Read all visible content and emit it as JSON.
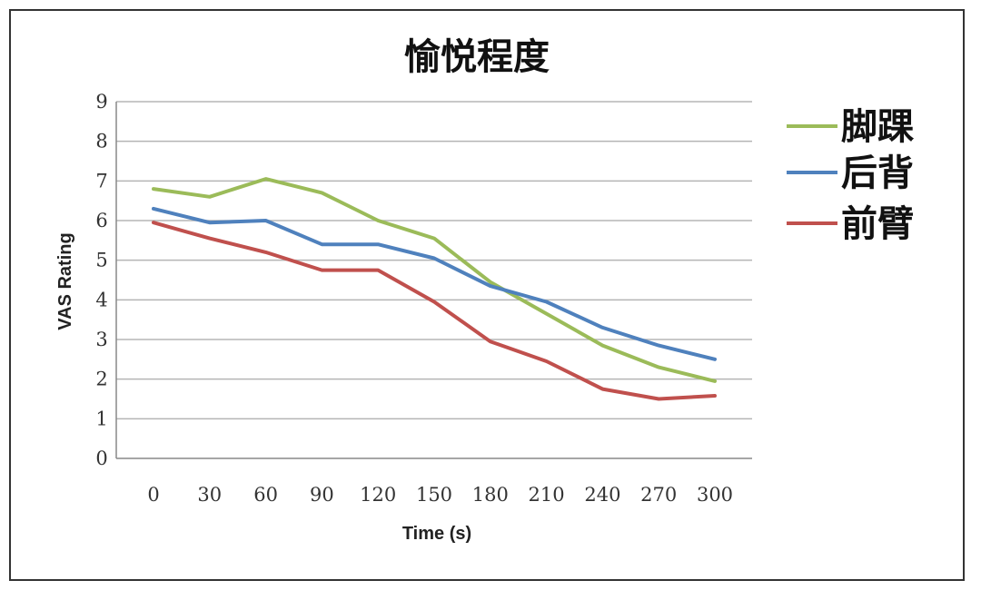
{
  "chart_data": {
    "type": "line",
    "title": "愉悦程度",
    "xlabel": "Time (s)",
    "ylabel": "VAS Rating",
    "x": [
      0,
      30,
      60,
      90,
      120,
      150,
      180,
      210,
      240,
      270,
      300
    ],
    "ylim": [
      0,
      9
    ],
    "yticks": [
      0,
      1,
      2,
      3,
      4,
      5,
      6,
      7,
      8,
      9
    ],
    "grid": true,
    "legend_position": "right",
    "series": [
      {
        "name": "脚踝",
        "color": "#9bbb59",
        "values": [
          6.8,
          6.6,
          7.05,
          6.7,
          6.0,
          5.55,
          4.45,
          3.65,
          2.85,
          2.3,
          1.95
        ]
      },
      {
        "name": "后背",
        "color": "#4f81bd",
        "values": [
          6.3,
          5.95,
          6.0,
          5.4,
          5.4,
          5.05,
          4.35,
          3.95,
          3.3,
          2.85,
          2.5
        ]
      },
      {
        "name": "前臂",
        "color": "#c0504d",
        "values": [
          5.95,
          5.55,
          5.2,
          4.75,
          4.75,
          3.95,
          2.95,
          2.45,
          1.75,
          1.5,
          1.58
        ]
      }
    ]
  }
}
